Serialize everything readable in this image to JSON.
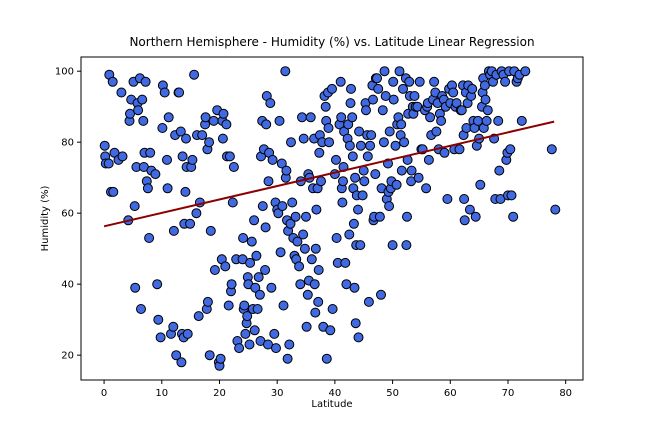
{
  "chart_data": {
    "type": "scatter",
    "title": "Northern Hemisphere - Humidity (%) vs. Latitude Linear Regression",
    "xlabel": "Latitude",
    "ylabel": "Humidity (%)",
    "xlim": [
      -4,
      83
    ],
    "ylim": [
      13,
      104
    ],
    "xticks": [
      0,
      10,
      20,
      30,
      40,
      50,
      60,
      70,
      80
    ],
    "yticks": [
      20,
      40,
      60,
      80,
      100
    ],
    "grid": false,
    "colors": {
      "marker_fill": "#4169e1",
      "marker_edge": "#000000",
      "regression_line": "#8b0000"
    },
    "regression": {
      "x": [
        0,
        78
      ],
      "y": [
        56.3,
        85.8
      ]
    },
    "points": [
      [
        0.1,
        79
      ],
      [
        0.2,
        76
      ],
      [
        0.3,
        74
      ],
      [
        0.8,
        74
      ],
      [
        0.9,
        99
      ],
      [
        1.2,
        66
      ],
      [
        1.5,
        97
      ],
      [
        1.6,
        66
      ],
      [
        1.8,
        77
      ],
      [
        2.5,
        75
      ],
      [
        3.0,
        94
      ],
      [
        3.2,
        76
      ],
      [
        4.2,
        58
      ],
      [
        4.4,
        86
      ],
      [
        4.5,
        88
      ],
      [
        4.7,
        92
      ],
      [
        5.1,
        97
      ],
      [
        5.3,
        62
      ],
      [
        5.4,
        39
      ],
      [
        5.6,
        73
      ],
      [
        5.8,
        91
      ],
      [
        5.9,
        89
      ],
      [
        6.2,
        98
      ],
      [
        6.4,
        33
      ],
      [
        6.6,
        92
      ],
      [
        6.8,
        86
      ],
      [
        6.9,
        73
      ],
      [
        7.0,
        77
      ],
      [
        7.2,
        97
      ],
      [
        7.4,
        69
      ],
      [
        7.6,
        67
      ],
      [
        7.8,
        53
      ],
      [
        8.0,
        77
      ],
      [
        8.2,
        72
      ],
      [
        8.9,
        71
      ],
      [
        9.2,
        40
      ],
      [
        9.4,
        30
      ],
      [
        9.8,
        25
      ],
      [
        10.1,
        84
      ],
      [
        10.2,
        96
      ],
      [
        10.5,
        94
      ],
      [
        10.9,
        75
      ],
      [
        11.0,
        67
      ],
      [
        11.2,
        87
      ],
      [
        11.6,
        26
      ],
      [
        12.1,
        55
      ],
      [
        12.0,
        28
      ],
      [
        12.3,
        82
      ],
      [
        12.5,
        20
      ],
      [
        12.9,
        94
      ],
      [
        13.0,
        94
      ],
      [
        13.3,
        83
      ],
      [
        13.4,
        18
      ],
      [
        13.5,
        26
      ],
      [
        13.6,
        76
      ],
      [
        13.8,
        25
      ],
      [
        13.9,
        57
      ],
      [
        14.1,
        66
      ],
      [
        14.2,
        81
      ],
      [
        14.3,
        73
      ],
      [
        14.5,
        26
      ],
      [
        14.9,
        57
      ],
      [
        15.1,
        73
      ],
      [
        15.3,
        75
      ],
      [
        15.6,
        99
      ],
      [
        16.0,
        60
      ],
      [
        16.1,
        82
      ],
      [
        16.4,
        31
      ],
      [
        16.6,
        63
      ],
      [
        17.0,
        82
      ],
      [
        17.5,
        85
      ],
      [
        17.6,
        87
      ],
      [
        17.8,
        33
      ],
      [
        17.9,
        78
      ],
      [
        18.0,
        35
      ],
      [
        18.2,
        80
      ],
      [
        18.3,
        20
      ],
      [
        18.5,
        55
      ],
      [
        19.0,
        86
      ],
      [
        19.2,
        44
      ],
      [
        19.6,
        89
      ],
      [
        19.9,
        18
      ],
      [
        20.0,
        17
      ],
      [
        20.2,
        19
      ],
      [
        20.4,
        47
      ],
      [
        20.5,
        86
      ],
      [
        20.6,
        81
      ],
      [
        20.7,
        88
      ],
      [
        21.0,
        45
      ],
      [
        21.2,
        85
      ],
      [
        21.3,
        76
      ],
      [
        21.6,
        34
      ],
      [
        21.8,
        76
      ],
      [
        22.0,
        38
      ],
      [
        22.1,
        40
      ],
      [
        22.3,
        63
      ],
      [
        22.5,
        73
      ],
      [
        22.9,
        47
      ],
      [
        23.1,
        24
      ],
      [
        23.4,
        22
      ],
      [
        24.0,
        47
      ],
      [
        24.1,
        53
      ],
      [
        24.2,
        33
      ],
      [
        24.3,
        34
      ],
      [
        24.5,
        26
      ],
      [
        24.7,
        29
      ],
      [
        24.8,
        31
      ],
      [
        24.9,
        42
      ],
      [
        25.0,
        40
      ],
      [
        25.2,
        23
      ],
      [
        25.3,
        46
      ],
      [
        25.6,
        52
      ],
      [
        25.8,
        33
      ],
      [
        26.0,
        58
      ],
      [
        26.1,
        27
      ],
      [
        26.2,
        39
      ],
      [
        26.4,
        48
      ],
      [
        26.6,
        33
      ],
      [
        26.8,
        42
      ],
      [
        27.0,
        37
      ],
      [
        27.1,
        24
      ],
      [
        27.2,
        76
      ],
      [
        27.4,
        86
      ],
      [
        27.5,
        62
      ],
      [
        27.7,
        78
      ],
      [
        27.9,
        44
      ],
      [
        28.0,
        56
      ],
      [
        28.1,
        85
      ],
      [
        28.2,
        93
      ],
      [
        28.4,
        23
      ],
      [
        28.5,
        69
      ],
      [
        28.6,
        77
      ],
      [
        28.8,
        91
      ],
      [
        29.0,
        39
      ],
      [
        29.2,
        75
      ],
      [
        29.5,
        26
      ],
      [
        29.7,
        63
      ],
      [
        29.8,
        22
      ],
      [
        30.0,
        61
      ],
      [
        30.2,
        60
      ],
      [
        30.4,
        86
      ],
      [
        30.6,
        49
      ],
      [
        30.8,
        74
      ],
      [
        30.9,
        62
      ],
      [
        31.1,
        34
      ],
      [
        31.4,
        100
      ],
      [
        31.5,
        70
      ],
      [
        31.6,
        72
      ],
      [
        31.7,
        58
      ],
      [
        31.8,
        19
      ],
      [
        31.9,
        55
      ],
      [
        32.1,
        23
      ],
      [
        32.3,
        57
      ],
      [
        32.4,
        80
      ],
      [
        32.6,
        63
      ],
      [
        32.8,
        53
      ],
      [
        33.0,
        48
      ],
      [
        33.2,
        59
      ],
      [
        33.3,
        47
      ],
      [
        33.5,
        52
      ],
      [
        33.8,
        45
      ],
      [
        34.0,
        40
      ],
      [
        34.1,
        69
      ],
      [
        34.3,
        87
      ],
      [
        34.5,
        54
      ],
      [
        34.6,
        81
      ],
      [
        34.8,
        50
      ],
      [
        35.0,
        59
      ],
      [
        35.1,
        28
      ],
      [
        35.3,
        37
      ],
      [
        35.4,
        71
      ],
      [
        35.5,
        41
      ],
      [
        35.6,
        70
      ],
      [
        35.8,
        87
      ],
      [
        36.0,
        47
      ],
      [
        36.2,
        67
      ],
      [
        36.4,
        81
      ],
      [
        36.5,
        40
      ],
      [
        36.6,
        32
      ],
      [
        36.7,
        50
      ],
      [
        36.8,
        61
      ],
      [
        37.0,
        67
      ],
      [
        37.1,
        35
      ],
      [
        37.2,
        44
      ],
      [
        37.3,
        77
      ],
      [
        37.4,
        82
      ],
      [
        37.6,
        69
      ],
      [
        37.8,
        80
      ],
      [
        38.0,
        28
      ],
      [
        38.2,
        93
      ],
      [
        38.4,
        90
      ],
      [
        38.5,
        86
      ],
      [
        38.6,
        19
      ],
      [
        38.8,
        94
      ],
      [
        38.9,
        84
      ],
      [
        39.0,
        80
      ],
      [
        39.2,
        27
      ],
      [
        39.5,
        95
      ],
      [
        39.6,
        33
      ],
      [
        40.0,
        71
      ],
      [
        40.2,
        75
      ],
      [
        40.3,
        53
      ],
      [
        40.5,
        46
      ],
      [
        40.8,
        85
      ],
      [
        41.0,
        97
      ],
      [
        41.1,
        87
      ],
      [
        41.2,
        67
      ],
      [
        41.3,
        63
      ],
      [
        41.4,
        69
      ],
      [
        41.5,
        73
      ],
      [
        41.6,
        83
      ],
      [
        41.8,
        46
      ],
      [
        42.0,
        40
      ],
      [
        42.2,
        81
      ],
      [
        42.3,
        85
      ],
      [
        42.5,
        54
      ],
      [
        42.6,
        79
      ],
      [
        42.7,
        91
      ],
      [
        42.8,
        95
      ],
      [
        43.0,
        87
      ],
      [
        43.1,
        76
      ],
      [
        43.2,
        67
      ],
      [
        43.3,
        57
      ],
      [
        43.4,
        39
      ],
      [
        43.5,
        70
      ],
      [
        43.6,
        29
      ],
      [
        43.7,
        51
      ],
      [
        43.8,
        65
      ],
      [
        44.0,
        61
      ],
      [
        44.1,
        25
      ],
      [
        44.2,
        83
      ],
      [
        44.4,
        51
      ],
      [
        44.5,
        79
      ],
      [
        44.8,
        65
      ],
      [
        45.0,
        72
      ],
      [
        45.1,
        69
      ],
      [
        45.3,
        91
      ],
      [
        45.4,
        89
      ],
      [
        45.6,
        82
      ],
      [
        45.7,
        76
      ],
      [
        45.9,
        35
      ],
      [
        46.1,
        79
      ],
      [
        46.3,
        82
      ],
      [
        46.5,
        96
      ],
      [
        46.6,
        92
      ],
      [
        46.7,
        58
      ],
      [
        46.8,
        59
      ],
      [
        47.0,
        71
      ],
      [
        47.1,
        98
      ],
      [
        47.3,
        98
      ],
      [
        47.5,
        95
      ],
      [
        47.8,
        59
      ],
      [
        48.0,
        37
      ],
      [
        48.1,
        67
      ],
      [
        48.3,
        89
      ],
      [
        48.5,
        80
      ],
      [
        48.6,
        100
      ],
      [
        48.8,
        93
      ],
      [
        49.0,
        64
      ],
      [
        49.2,
        74
      ],
      [
        49.3,
        66
      ],
      [
        49.4,
        62
      ],
      [
        49.5,
        83
      ],
      [
        49.7,
        67
      ],
      [
        49.8,
        69
      ],
      [
        50.0,
        51
      ],
      [
        50.1,
        97
      ],
      [
        50.2,
        92
      ],
      [
        50.5,
        79
      ],
      [
        50.7,
        68
      ],
      [
        50.8,
        85
      ],
      [
        51.0,
        87
      ],
      [
        51.2,
        100
      ],
      [
        51.4,
        82
      ],
      [
        51.5,
        85
      ],
      [
        51.6,
        72
      ],
      [
        51.8,
        95
      ],
      [
        52.0,
        80
      ],
      [
        52.3,
        98
      ],
      [
        52.4,
        51
      ],
      [
        52.5,
        59
      ],
      [
        52.6,
        75
      ],
      [
        52.7,
        88
      ],
      [
        52.9,
        97
      ],
      [
        53.0,
        93
      ],
      [
        53.2,
        69
      ],
      [
        53.3,
        72
      ],
      [
        53.5,
        90
      ],
      [
        53.6,
        88
      ],
      [
        53.8,
        93
      ],
      [
        54.0,
        90
      ],
      [
        54.3,
        90
      ],
      [
        54.5,
        70
      ],
      [
        54.7,
        97
      ],
      [
        55.0,
        78
      ],
      [
        55.2,
        78
      ],
      [
        55.6,
        89
      ],
      [
        55.8,
        67
      ],
      [
        56.0,
        90
      ],
      [
        56.1,
        91
      ],
      [
        56.3,
        75
      ],
      [
        56.5,
        87
      ],
      [
        56.7,
        82
      ],
      [
        57.0,
        92
      ],
      [
        57.2,
        97
      ],
      [
        57.4,
        94
      ],
      [
        57.6,
        83
      ],
      [
        57.8,
        91
      ],
      [
        58.0,
        78
      ],
      [
        58.2,
        88
      ],
      [
        58.4,
        86
      ],
      [
        58.6,
        93
      ],
      [
        58.9,
        92
      ],
      [
        59.0,
        77
      ],
      [
        59.2,
        90
      ],
      [
        59.5,
        64
      ],
      [
        59.8,
        95
      ],
      [
        60.0,
        91
      ],
      [
        60.3,
        96
      ],
      [
        60.5,
        94
      ],
      [
        60.7,
        78
      ],
      [
        60.9,
        90
      ],
      [
        61.1,
        91
      ],
      [
        61.6,
        78
      ],
      [
        61.8,
        89
      ],
      [
        62.0,
        89
      ],
      [
        62.2,
        96
      ],
      [
        62.3,
        82
      ],
      [
        62.4,
        64
      ],
      [
        62.5,
        58
      ],
      [
        62.7,
        94
      ],
      [
        62.8,
        84
      ],
      [
        63.0,
        91
      ],
      [
        63.1,
        96
      ],
      [
        63.4,
        61
      ],
      [
        63.6,
        93
      ],
      [
        63.8,
        95
      ],
      [
        64.0,
        86
      ],
      [
        64.2,
        84
      ],
      [
        64.4,
        59
      ],
      [
        64.6,
        79
      ],
      [
        64.8,
        86
      ],
      [
        65.0,
        81
      ],
      [
        65.2,
        68
      ],
      [
        65.5,
        90
      ],
      [
        65.6,
        94
      ],
      [
        65.7,
        98
      ],
      [
        65.8,
        84
      ],
      [
        66.0,
        96
      ],
      [
        66.1,
        92
      ],
      [
        66.3,
        86
      ],
      [
        66.5,
        89
      ],
      [
        66.7,
        100
      ],
      [
        66.9,
        99
      ],
      [
        67.2,
        100
      ],
      [
        67.4,
        97
      ],
      [
        67.6,
        81
      ],
      [
        67.8,
        64
      ],
      [
        68.0,
        99
      ],
      [
        68.3,
        86
      ],
      [
        68.5,
        72
      ],
      [
        68.7,
        64
      ],
      [
        68.9,
        100
      ],
      [
        69.2,
        99
      ],
      [
        69.5,
        97
      ],
      [
        69.7,
        75
      ],
      [
        69.9,
        77
      ],
      [
        70.0,
        65
      ],
      [
        70.2,
        100
      ],
      [
        70.4,
        78
      ],
      [
        70.6,
        65
      ],
      [
        70.9,
        59
      ],
      [
        71.1,
        100
      ],
      [
        71.5,
        97
      ],
      [
        71.7,
        98
      ],
      [
        72.0,
        99
      ],
      [
        72.4,
        86
      ],
      [
        73.0,
        100
      ],
      [
        77.6,
        78
      ],
      [
        78.2,
        61
      ]
    ]
  }
}
